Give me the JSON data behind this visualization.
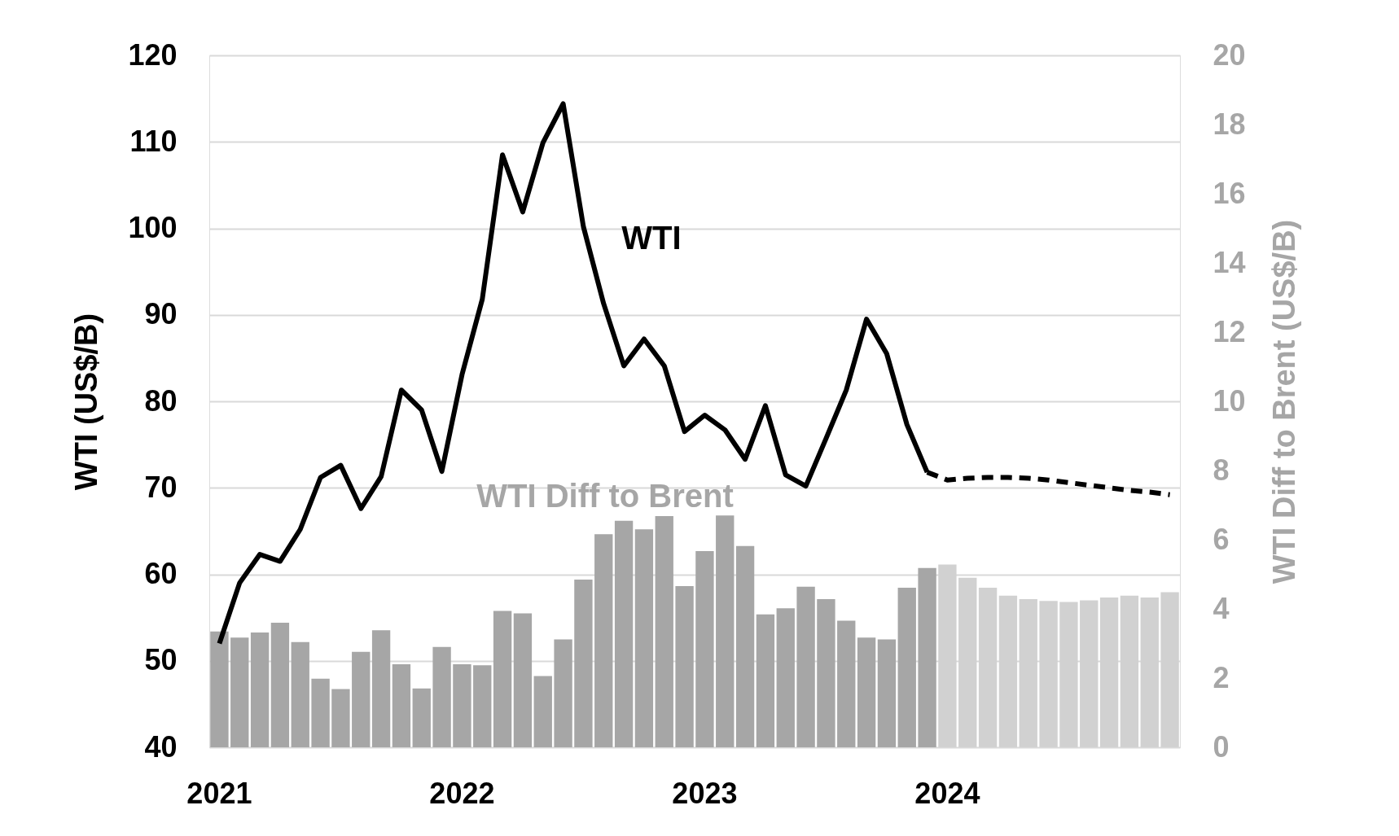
{
  "chart_data": {
    "type": "bar",
    "ylabel": "WTI (US$/B)",
    "y2label": "WTI Diff to Brent (US$/B)",
    "categories": [
      "2021",
      null,
      null,
      null,
      null,
      null,
      null,
      null,
      null,
      null,
      null,
      null,
      "2022",
      null,
      null,
      null,
      null,
      null,
      null,
      null,
      null,
      null,
      null,
      null,
      "2023",
      null,
      null,
      null,
      null,
      null,
      null,
      null,
      null,
      null,
      null,
      null,
      "2024",
      null,
      null,
      null,
      null,
      null,
      null,
      null,
      null,
      null,
      null,
      null
    ],
    "ylim": [
      40,
      120
    ],
    "yticks": [
      40,
      50,
      60,
      70,
      80,
      90,
      100,
      110,
      120
    ],
    "y2lim": [
      0,
      20
    ],
    "y2ticks": [
      0,
      2,
      4,
      6,
      8,
      10,
      12,
      14,
      16,
      18,
      20
    ],
    "grid": "y",
    "series": [
      {
        "name": "WTI Diff to Brent",
        "axis": "y2",
        "color": "#a6a6a6",
        "colors": [
          "#a6a6a6",
          "#a6a6a6",
          "#a6a6a6",
          "#a6a6a6",
          "#a6a6a6",
          "#a6a6a6",
          "#a6a6a6",
          "#a6a6a6",
          "#a6a6a6",
          "#a6a6a6",
          "#a6a6a6",
          "#a6a6a6",
          "#a6a6a6",
          "#a6a6a6",
          "#a6a6a6",
          "#a6a6a6",
          "#a6a6a6",
          "#a6a6a6",
          "#a6a6a6",
          "#a6a6a6",
          "#a6a6a6",
          "#a6a6a6",
          "#a6a6a6",
          "#a6a6a6",
          "#a6a6a6",
          "#a6a6a6",
          "#a6a6a6",
          "#a6a6a6",
          "#a6a6a6",
          "#a6a6a6",
          "#a6a6a6",
          "#a6a6a6",
          "#a6a6a6",
          "#a6a6a6",
          "#a6a6a6",
          "#a6a6a6",
          "#d1d1d1",
          "#d1d1d1",
          "#d1d1d1",
          "#d1d1d1",
          "#d1d1d1",
          "#d1d1d1",
          "#d1d1d1",
          "#d1d1d1",
          "#d1d1d1",
          "#d1d1d1",
          "#d1d1d1",
          "#d1d1d1"
        ],
        "values": [
          3.35,
          3.17,
          3.32,
          3.6,
          3.04,
          1.98,
          1.68,
          2.76,
          3.38,
          2.4,
          1.7,
          2.9,
          2.4,
          2.37,
          3.94,
          3.87,
          2.06,
          3.12,
          4.85,
          6.16,
          6.55,
          6.3,
          6.68,
          4.66,
          5.67,
          6.7,
          5.82,
          3.84,
          4.02,
          4.64,
          4.28,
          3.66,
          3.17,
          3.12,
          4.61,
          5.18,
          5.28,
          4.9,
          4.61,
          4.38,
          4.28,
          4.23,
          4.2,
          4.25,
          4.33,
          4.38,
          4.33,
          4.48
        ]
      },
      {
        "name": "WTI",
        "type": "line",
        "color": "#000000",
        "line_style": "solid",
        "values": [
          52,
          59,
          62.3,
          61.5,
          65.2,
          71.2,
          72.6,
          67.6,
          71.3,
          81.3,
          79,
          71.9,
          83.1,
          91.8,
          108.5,
          101.9,
          109.9,
          114.4,
          100.2,
          91.3,
          84.1,
          87.2,
          84.1,
          76.5,
          78.4,
          76.7,
          73.3,
          79.5,
          71.5,
          70.2,
          75.7,
          81.3,
          89.5,
          85.5,
          77.3,
          71.8,
          null,
          null,
          null,
          null,
          null,
          null,
          null,
          null,
          null,
          null,
          null,
          null
        ]
      },
      {
        "type": "line",
        "color": "#000000",
        "line_style": "dashed",
        "values": [
          null,
          null,
          null,
          null,
          null,
          null,
          null,
          null,
          null,
          null,
          null,
          null,
          null,
          null,
          null,
          null,
          null,
          null,
          null,
          null,
          null,
          null,
          null,
          null,
          null,
          null,
          null,
          null,
          null,
          null,
          null,
          null,
          null,
          null,
          null,
          71.8,
          70.9,
          71.1,
          71.2,
          71.2,
          71.1,
          70.9,
          70.6,
          70.3,
          70.0,
          69.7,
          69.5,
          69.2
        ]
      }
    ]
  }
}
